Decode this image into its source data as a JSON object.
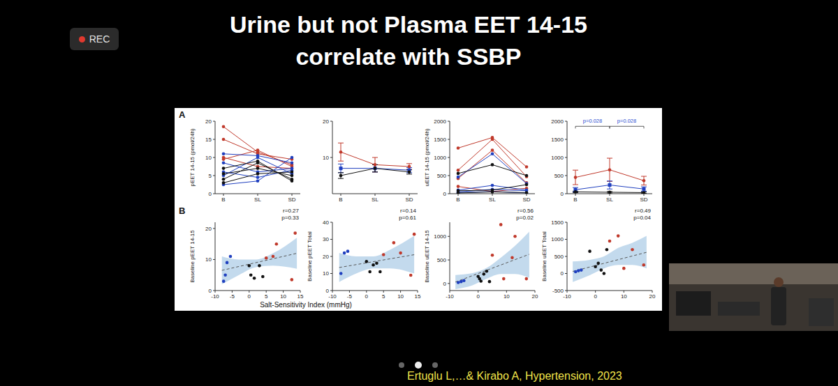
{
  "slide": {
    "title": [
      "Urine but not Plasma EET 14-15",
      "correlate with SSBP"
    ],
    "recording": "REC",
    "citation": "Ertuglu L,…& Kirabo A, Hypertension, 2023"
  },
  "figure": {
    "panels": [
      "A",
      "B"
    ],
    "x_label": "Salt-Sensitivity Index (mmHg)"
  },
  "chart_data": [
    {
      "type": "line",
      "ylabel": "pEET 14-15 (pmol/24h)",
      "categories": [
        "B",
        "SL",
        "SD"
      ],
      "ylim": [
        0,
        20
      ],
      "yticks": [
        0,
        5,
        10,
        15,
        20
      ],
      "marker": "circle",
      "series": [
        {
          "color": "#c0392b",
          "values": [
            18.5,
            11.5,
            8
          ]
        },
        {
          "color": "#c0392b",
          "values": [
            15,
            11,
            9.5
          ]
        },
        {
          "color": "#c0392b",
          "values": [
            9.5,
            12,
            7.5
          ]
        },
        {
          "color": "#c0392b",
          "values": [
            10,
            7.5,
            7
          ]
        },
        {
          "color": "#1f3fbf",
          "values": [
            11,
            10.5,
            8.5
          ]
        },
        {
          "color": "#1f3fbf",
          "values": [
            8.5,
            6,
            7
          ]
        },
        {
          "color": "#1f3fbf",
          "values": [
            5,
            10,
            5.5
          ]
        },
        {
          "color": "#1f3fbf",
          "values": [
            6,
            4.5,
            6.5
          ]
        },
        {
          "color": "#1f3fbf",
          "values": [
            2.5,
            3.5,
            10
          ]
        },
        {
          "color": "#111111",
          "values": [
            5.5,
            7,
            5
          ]
        },
        {
          "color": "#111111",
          "values": [
            4,
            8.5,
            4
          ]
        },
        {
          "color": "#111111",
          "values": [
            3,
            5.5,
            6
          ]
        },
        {
          "color": "#111111",
          "values": [
            7,
            9,
            3.5
          ]
        }
      ]
    },
    {
      "type": "line",
      "categories": [
        "B",
        "SL",
        "SD"
      ],
      "ylim": [
        0,
        20
      ],
      "yticks": [
        10,
        20
      ],
      "series": [
        {
          "color": "#c0392b",
          "marker": "circle",
          "values": [
            11.5,
            8,
            7.5
          ],
          "errors": [
            2.5,
            2,
            0.8
          ]
        },
        {
          "color": "#1f3fbf",
          "marker": "square",
          "values": [
            7,
            7,
            6.5
          ],
          "errors": [
            1.2,
            1,
            0.7
          ]
        },
        {
          "color": "#111111",
          "marker": "circle",
          "values": [
            5,
            7,
            6
          ],
          "errors": [
            0.8,
            1,
            0.6
          ]
        }
      ]
    },
    {
      "type": "line",
      "ylabel": "uEET 14-15 (pmol/24h)",
      "categories": [
        "B",
        "SL",
        "SD"
      ],
      "ylim": [
        0,
        2000
      ],
      "yticks": [
        0,
        500,
        1000,
        1500,
        2000
      ],
      "marker": "circle",
      "series": [
        {
          "color": "#c0392b",
          "values": [
            1260,
            1550,
            740
          ]
        },
        {
          "color": "#c0392b",
          "values": [
            650,
            1500,
            470
          ]
        },
        {
          "color": "#c0392b",
          "values": [
            420,
            1200,
            300
          ]
        },
        {
          "color": "#c0392b",
          "values": [
            200,
            60,
            150
          ]
        },
        {
          "color": "#1f3fbf",
          "values": [
            460,
            1100,
            280
          ]
        },
        {
          "color": "#1f3fbf",
          "values": [
            100,
            230,
            100
          ]
        },
        {
          "color": "#1f3fbf",
          "values": [
            50,
            120,
            80
          ]
        },
        {
          "color": "#1f3fbf",
          "values": [
            30,
            60,
            20
          ]
        },
        {
          "color": "#111111",
          "values": [
            560,
            800,
            500
          ]
        },
        {
          "color": "#111111",
          "values": [
            80,
            100,
            250
          ]
        },
        {
          "color": "#111111",
          "values": [
            20,
            50,
            30
          ]
        }
      ]
    },
    {
      "type": "line",
      "categories": [
        "B",
        "SL",
        "SD"
      ],
      "ylim": [
        0,
        2000
      ],
      "yticks": [
        0,
        500,
        1000,
        1500,
        2000
      ],
      "series": [
        {
          "color": "#c0392b",
          "marker": "circle",
          "values": [
            450,
            660,
            360
          ],
          "errors": [
            200,
            320,
            120
          ]
        },
        {
          "color": "#1f3fbf",
          "marker": "square",
          "values": [
            110,
            240,
            130
          ],
          "errors": [
            60,
            110,
            60
          ]
        },
        {
          "color": "#111111",
          "marker": "circle",
          "values": [
            50,
            40,
            30
          ],
          "errors": [
            20,
            20,
            20
          ]
        }
      ],
      "annotations": [
        {
          "text": "p=0.028",
          "from": "B",
          "to": "SL",
          "color": "#2a4bd0"
        },
        {
          "text": "p=0.028",
          "from": "SL",
          "to": "SD",
          "color": "#2a4bd0"
        }
      ]
    },
    {
      "type": "scatter",
      "ylabel": "Baseline pEET 14-15",
      "xlim": [
        -10,
        15
      ],
      "xticks": [
        -10,
        -5,
        0,
        5,
        10,
        15
      ],
      "ylim": [
        0,
        22
      ],
      "yticks": [
        0,
        10,
        20
      ],
      "series": [
        {
          "color": "#1f3fbf",
          "marker": "circle",
          "x": [
            -7.5,
            -7,
            -6.5,
            -5.5
          ],
          "y": [
            3,
            5,
            9,
            11
          ]
        },
        {
          "color": "#111111",
          "marker": "circle",
          "x": [
            0,
            0.5,
            1.5,
            3,
            4
          ],
          "y": [
            8,
            5,
            4,
            8,
            4.5
          ]
        },
        {
          "color": "#c0392b",
          "marker": "circle",
          "x": [
            5,
            7,
            8,
            12.5,
            13.5
          ],
          "y": [
            10.5,
            11,
            15,
            3.5,
            18.5
          ]
        }
      ],
      "fit": {
        "x": [
          -8,
          14
        ],
        "y": [
          6.5,
          12
        ],
        "color": "#555555",
        "line_style": "dashed"
      },
      "ci": {
        "x": [
          -8,
          -3,
          2,
          7,
          14
        ],
        "lower": [
          2,
          5,
          7.5,
          8,
          7
        ],
        "upper": [
          11,
          10,
          10,
          12,
          17
        ],
        "color": "#a9cbe6"
      },
      "annotations": [
        "r=0.27",
        "p=0.33"
      ]
    },
    {
      "type": "scatter",
      "ylabel": "Baseline pEET Total",
      "xlim": [
        -10,
        15
      ],
      "xticks": [
        -10,
        -5,
        0,
        5,
        10,
        15
      ],
      "ylim": [
        0,
        40
      ],
      "yticks": [
        0,
        10,
        20,
        30,
        40
      ],
      "series": [
        {
          "color": "#1f3fbf",
          "marker": "circle",
          "x": [
            -7.5,
            -6.5,
            -5.5
          ],
          "y": [
            10,
            22,
            23
          ]
        },
        {
          "color": "#111111",
          "marker": "circle",
          "x": [
            0,
            1,
            2,
            3,
            4
          ],
          "y": [
            17,
            11,
            15,
            16,
            11
          ]
        },
        {
          "color": "#c0392b",
          "marker": "circle",
          "x": [
            5,
            8,
            10,
            13,
            14
          ],
          "y": [
            21,
            28,
            22,
            9,
            33
          ]
        }
      ],
      "fit": {
        "x": [
          -8,
          14
        ],
        "y": [
          13.5,
          21
        ],
        "color": "#555555",
        "line_style": "dashed"
      },
      "ci": {
        "x": [
          -8,
          -3,
          2,
          7,
          14
        ],
        "lower": [
          5,
          10,
          13,
          13,
          10
        ],
        "upper": [
          22,
          20,
          20,
          24,
          32
        ],
        "color": "#a9cbe6"
      },
      "annotations": [
        "r=0.14",
        "p=0.61"
      ]
    },
    {
      "type": "scatter",
      "ylabel": "Baseline uEET 14-15",
      "xlim": [
        -10,
        20
      ],
      "xticks": [
        -10,
        0,
        10,
        20
      ],
      "ylim": [
        -150,
        1300
      ],
      "yticks": [
        0,
        500,
        1000
      ],
      "series": [
        {
          "color": "#1f3fbf",
          "marker": "circle",
          "x": [
            -7,
            -6,
            -5
          ],
          "y": [
            20,
            40,
            60
          ]
        },
        {
          "color": "#111111",
          "marker": "circle",
          "x": [
            0,
            0.5,
            1,
            2,
            3,
            4
          ],
          "y": [
            150,
            100,
            50,
            200,
            260,
            40
          ]
        },
        {
          "color": "#c0392b",
          "marker": "circle",
          "x": [
            5,
            8,
            9,
            12,
            13,
            17
          ],
          "y": [
            600,
            1250,
            100,
            550,
            1000,
            100
          ]
        }
      ],
      "fit": {
        "x": [
          -8,
          18
        ],
        "y": [
          30,
          620
        ],
        "color": "#555555",
        "line_style": "dashed"
      },
      "ci": {
        "x": [
          -8,
          -2,
          3,
          8,
          13,
          18
        ],
        "lower": [
          -120,
          -40,
          100,
          200,
          200,
          120
        ],
        "upper": [
          180,
          220,
          330,
          550,
          800,
          1100
        ],
        "color": "#a9cbe6"
      },
      "annotations": [
        "r=0.56",
        "p=0.02"
      ]
    },
    {
      "type": "scatter",
      "ylabel": "Baseline uEET Total",
      "xlim": [
        -10,
        20
      ],
      "xticks": [
        -10,
        0,
        10,
        20
      ],
      "ylim": [
        -500,
        1500
      ],
      "yticks": [
        -500,
        0,
        500,
        1000,
        1500
      ],
      "series": [
        {
          "color": "#1f3fbf",
          "marker": "circle",
          "x": [
            -7,
            -6,
            -5
          ],
          "y": [
            50,
            80,
            100
          ]
        },
        {
          "color": "#111111",
          "marker": "circle",
          "x": [
            -2,
            0,
            1,
            2,
            3,
            4
          ],
          "y": [
            650,
            200,
            300,
            100,
            0,
            700
          ]
        },
        {
          "color": "#c0392b",
          "marker": "circle",
          "x": [
            5,
            8,
            10,
            13,
            17
          ],
          "y": [
            950,
            1100,
            150,
            700,
            250
          ]
        }
      ],
      "fit": {
        "x": [
          -8,
          18
        ],
        "y": [
          60,
          620
        ],
        "color": "#555555",
        "line_style": "dashed"
      },
      "ci": {
        "x": [
          -8,
          -2,
          3,
          8,
          13,
          18
        ],
        "lower": [
          -250,
          -50,
          150,
          250,
          250,
          150
        ],
        "upper": [
          350,
          400,
          500,
          750,
          900,
          1100
        ],
        "color": "#a9cbe6"
      },
      "annotations": [
        "r=0.49",
        "p=0.04"
      ]
    }
  ]
}
